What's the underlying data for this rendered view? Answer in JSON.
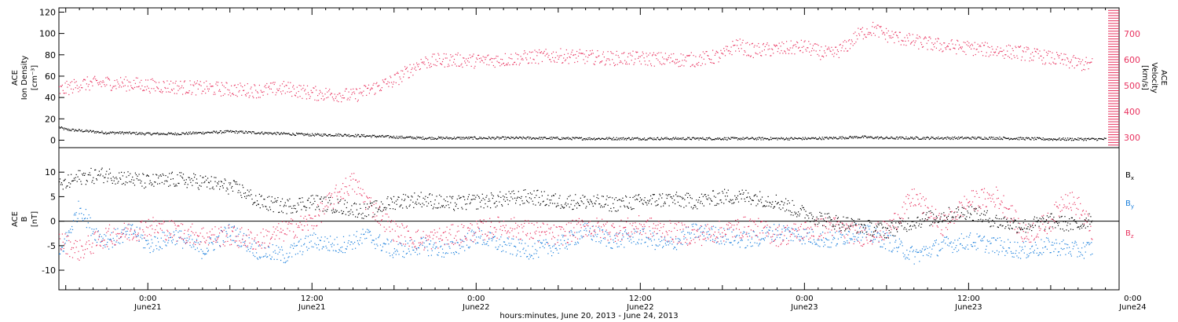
{
  "colors": {
    "density": "#000000",
    "velocity": "#e8325f",
    "bx": "#000000",
    "by": "#1a7fdc",
    "bz": "#e8325f"
  },
  "chart_data": [
    {
      "type": "scatter",
      "panel": "top",
      "xlabel": "hours:minutes, June 20, 2013 - June 24, 2013",
      "xlim": [
        -6.5,
        71
      ],
      "x_ticks": [
        {
          "t": 0,
          "time": "0:00",
          "day": "June21"
        },
        {
          "t": 12,
          "time": "12:00",
          "day": "June21"
        },
        {
          "t": 24,
          "time": "0:00",
          "day": "June22"
        },
        {
          "t": 36,
          "time": "12:00",
          "day": "June22"
        },
        {
          "t": 48,
          "time": "0:00",
          "day": "June23"
        },
        {
          "t": 60,
          "time": "12:00",
          "day": "June23"
        },
        {
          "t": 72,
          "time": "0:00",
          "day": "June24"
        }
      ],
      "y_left": {
        "label": [
          "ACE",
          "Ion Density",
          "[cm⁻³]"
        ],
        "ylim": [
          -7,
          124
        ],
        "ticks": [
          "0",
          "20",
          "40",
          "60",
          "80",
          "100",
          "120"
        ]
      },
      "y_right": {
        "label": [
          "ACE",
          "Velocity",
          "[km/s]"
        ],
        "ylim": [
          260,
          800
        ],
        "ticks": [
          "300",
          "400",
          "500",
          "600",
          "700"
        ]
      },
      "series": [
        {
          "key": "density",
          "axis": "left",
          "points": [
            [
              -6.5,
              12
            ],
            [
              -6,
              10
            ],
            [
              -5,
              9
            ],
            [
              -4,
              8
            ],
            [
              -3,
              7
            ],
            [
              -2,
              7
            ],
            [
              0,
              6
            ],
            [
              2,
              6
            ],
            [
              4,
              7
            ],
            [
              6,
              8
            ],
            [
              8,
              7
            ],
            [
              10,
              6
            ],
            [
              12,
              5
            ],
            [
              14,
              5
            ],
            [
              16,
              4
            ],
            [
              18,
              3
            ],
            [
              20,
              2
            ],
            [
              22,
              2
            ],
            [
              24,
              2
            ],
            [
              28,
              2
            ],
            [
              32,
              1.5
            ],
            [
              36,
              1.5
            ],
            [
              40,
              1.5
            ],
            [
              44,
              1.5
            ],
            [
              48,
              1.5
            ],
            [
              50,
              2
            ],
            [
              52,
              3
            ],
            [
              54,
              2
            ],
            [
              56,
              2
            ],
            [
              58,
              2
            ],
            [
              60,
              2
            ],
            [
              62,
              2
            ],
            [
              64,
              1.5
            ],
            [
              66,
              1
            ],
            [
              68,
              1
            ],
            [
              70,
              1
            ]
          ]
        },
        {
          "key": "velocity",
          "axis": "right",
          "points": [
            [
              -6.5,
              480
            ],
            [
              -5,
              505
            ],
            [
              -3,
              510
            ],
            [
              -1,
              505
            ],
            [
              0,
              500
            ],
            [
              2,
              495
            ],
            [
              4,
              490
            ],
            [
              6,
              485
            ],
            [
              8,
              480
            ],
            [
              10,
              490
            ],
            [
              12,
              470
            ],
            [
              14,
              465
            ],
            [
              15,
              460
            ],
            [
              16,
              480
            ],
            [
              18,
              520
            ],
            [
              19,
              555
            ],
            [
              20,
              590
            ],
            [
              22,
              600
            ],
            [
              24,
              595
            ],
            [
              26,
              600
            ],
            [
              28,
              610
            ],
            [
              30,
              615
            ],
            [
              32,
              610
            ],
            [
              34,
              605
            ],
            [
              36,
              605
            ],
            [
              38,
              600
            ],
            [
              40,
              600
            ],
            [
              42,
              615
            ],
            [
              43,
              660
            ],
            [
              44,
              635
            ],
            [
              46,
              640
            ],
            [
              48,
              650
            ],
            [
              49,
              630
            ],
            [
              50,
              620
            ],
            [
              51,
              650
            ],
            [
              52,
              700
            ],
            [
              53,
              720
            ],
            [
              54,
              695
            ],
            [
              56,
              670
            ],
            [
              58,
              655
            ],
            [
              60,
              645
            ],
            [
              62,
              635
            ],
            [
              64,
              625
            ],
            [
              65,
              615
            ],
            [
              66,
              605
            ],
            [
              67,
              595
            ],
            [
              68,
              585
            ],
            [
              69,
              580
            ]
          ]
        }
      ]
    },
    {
      "type": "scatter",
      "panel": "bottom",
      "xlim": [
        -6.5,
        71
      ],
      "y_left": {
        "label": [
          "ACE",
          "B",
          "[nT]"
        ],
        "ylim": [
          -14,
          15
        ],
        "ticks": [
          "-10",
          "-5",
          "0",
          "5",
          "10"
        ]
      },
      "series": [
        {
          "key": "bx",
          "name": "Bx",
          "legend_main": "B",
          "legend_sub": "x",
          "points": [
            [
              -6.5,
              7
            ],
            [
              -5,
              9
            ],
            [
              -3,
              9.5
            ],
            [
              -1,
              8.5
            ],
            [
              0,
              8
            ],
            [
              2,
              8.5
            ],
            [
              4,
              8
            ],
            [
              6,
              7
            ],
            [
              7,
              6
            ],
            [
              8,
              4
            ],
            [
              10,
              3
            ],
            [
              12,
              4
            ],
            [
              14,
              3
            ],
            [
              16,
              2
            ],
            [
              18,
              4
            ],
            [
              20,
              4.5
            ],
            [
              22,
              3.5
            ],
            [
              24,
              4
            ],
            [
              26,
              4.5
            ],
            [
              28,
              5
            ],
            [
              30,
              4
            ],
            [
              32,
              4
            ],
            [
              34,
              3.5
            ],
            [
              36,
              4
            ],
            [
              38,
              4.5
            ],
            [
              40,
              4
            ],
            [
              42,
              5
            ],
            [
              44,
              5
            ],
            [
              46,
              4
            ],
            [
              48,
              1.5
            ],
            [
              50,
              0
            ],
            [
              52,
              -1
            ],
            [
              54,
              -2
            ],
            [
              56,
              0
            ],
            [
              58,
              1
            ],
            [
              60,
              2
            ],
            [
              62,
              0
            ],
            [
              64,
              -1
            ],
            [
              66,
              0
            ],
            [
              68,
              -1
            ],
            [
              69,
              1
            ]
          ]
        },
        {
          "key": "by",
          "name": "By",
          "legend_main": "B",
          "legend_sub": "y",
          "points": [
            [
              -6.5,
              -7
            ],
            [
              -5,
              3
            ],
            [
              -4,
              -2
            ],
            [
              -3,
              -4
            ],
            [
              -1,
              -2
            ],
            [
              0,
              -5
            ],
            [
              2,
              -3
            ],
            [
              4,
              -6
            ],
            [
              6,
              -2
            ],
            [
              8,
              -6
            ],
            [
              10,
              -7
            ],
            [
              12,
              -4
            ],
            [
              14,
              -5
            ],
            [
              16,
              -3
            ],
            [
              18,
              -6
            ],
            [
              20,
              -5
            ],
            [
              22,
              -6
            ],
            [
              24,
              -3
            ],
            [
              26,
              -5
            ],
            [
              28,
              -6
            ],
            [
              30,
              -5
            ],
            [
              32,
              -2
            ],
            [
              34,
              -4
            ],
            [
              36,
              -3
            ],
            [
              38,
              -5
            ],
            [
              40,
              -2
            ],
            [
              42,
              -3
            ],
            [
              44,
              -4
            ],
            [
              46,
              -2
            ],
            [
              48,
              -3
            ],
            [
              50,
              -4
            ],
            [
              52,
              -2
            ],
            [
              54,
              -4
            ],
            [
              56,
              -7
            ],
            [
              58,
              -5
            ],
            [
              60,
              -4
            ],
            [
              62,
              -5
            ],
            [
              64,
              -6
            ],
            [
              66,
              -5
            ],
            [
              68,
              -6
            ],
            [
              69,
              -5.5
            ]
          ]
        },
        {
          "key": "bz",
          "name": "Bz",
          "legend_main": "B",
          "legend_sub": "z",
          "points": [
            [
              -6.5,
              -4
            ],
            [
              -5,
              -6
            ],
            [
              -3,
              -3
            ],
            [
              -1,
              -2
            ],
            [
              0,
              -1
            ],
            [
              2,
              -2
            ],
            [
              4,
              -3
            ],
            [
              6,
              -3
            ],
            [
              8,
              -4
            ],
            [
              10,
              -2
            ],
            [
              12,
              0
            ],
            [
              14,
              6
            ],
            [
              15,
              8
            ],
            [
              16,
              4
            ],
            [
              18,
              -2
            ],
            [
              20,
              -4
            ],
            [
              22,
              -3
            ],
            [
              24,
              -2
            ],
            [
              26,
              -1
            ],
            [
              28,
              -2
            ],
            [
              30,
              -3
            ],
            [
              32,
              -1
            ],
            [
              34,
              -2
            ],
            [
              36,
              -1
            ],
            [
              38,
              -2
            ],
            [
              40,
              -3
            ],
            [
              42,
              -2
            ],
            [
              44,
              -1
            ],
            [
              46,
              -3
            ],
            [
              48,
              -2
            ],
            [
              50,
              -1
            ],
            [
              52,
              -3
            ],
            [
              54,
              -2
            ],
            [
              56,
              5
            ],
            [
              57,
              2
            ],
            [
              58,
              -1
            ],
            [
              60,
              4
            ],
            [
              62,
              5
            ],
            [
              63,
              2
            ],
            [
              64,
              -3
            ],
            [
              66,
              0
            ],
            [
              67,
              5
            ],
            [
              68,
              3
            ],
            [
              69,
              -2
            ]
          ]
        }
      ]
    }
  ]
}
